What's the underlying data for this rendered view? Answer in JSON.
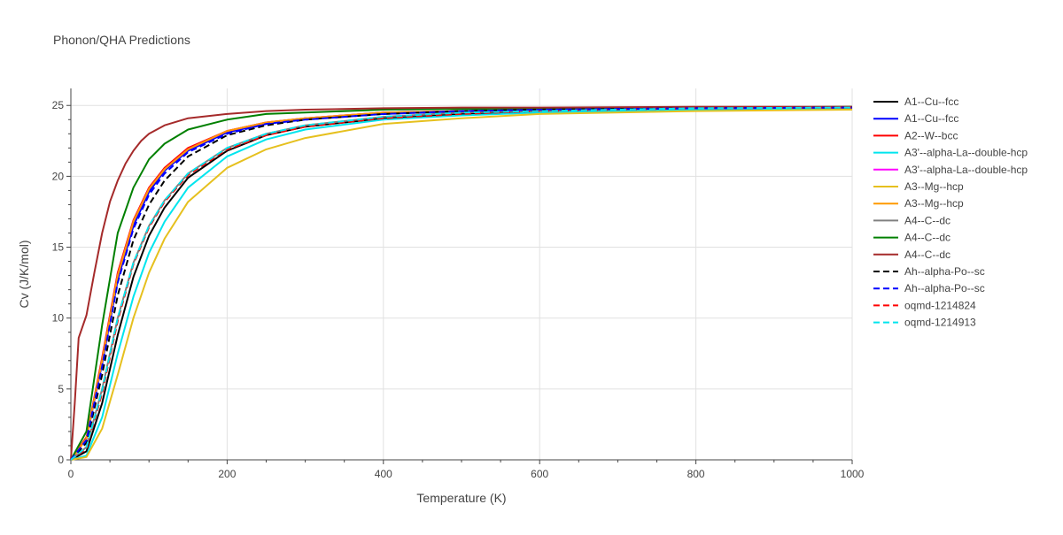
{
  "chart_data": {
    "type": "line",
    "title": "Phonon/QHA Predictions",
    "xlabel": "Temperature (K)",
    "ylabel": "Cv (J/K/mol)",
    "xlim": [
      0,
      1000
    ],
    "ylim": [
      0,
      26.2
    ],
    "xticks": [
      0,
      200,
      400,
      600,
      800,
      1000
    ],
    "yticks": [
      0,
      5,
      10,
      15,
      20,
      25
    ],
    "grid": true,
    "legend_position": "right",
    "series": [
      {
        "name": "A1--Cu--fcc",
        "color": "#000000",
        "dash": "solid",
        "x": [
          0,
          20,
          40,
          60,
          80,
          100,
          120,
          150,
          200,
          250,
          300,
          400,
          500,
          600,
          800,
          1000
        ],
        "y": [
          0,
          0.6,
          4.0,
          8.8,
          12.9,
          15.8,
          17.8,
          19.9,
          21.8,
          22.9,
          23.5,
          24.1,
          24.4,
          24.6,
          24.8,
          24.85
        ]
      },
      {
        "name": "A1--Cu--fcc",
        "color": "#0000ff",
        "dash": "solid",
        "x": [
          0,
          20,
          40,
          60,
          80,
          100,
          120,
          150,
          200,
          250,
          300,
          400,
          500,
          600,
          800,
          1000
        ],
        "y": [
          0,
          1.5,
          6.8,
          12.7,
          16.5,
          18.9,
          20.4,
          21.8,
          23.1,
          23.7,
          24.1,
          24.4,
          24.6,
          24.7,
          24.8,
          24.85
        ]
      },
      {
        "name": "A2--W--bcc",
        "color": "#ff0000",
        "dash": "solid",
        "x": [
          0,
          20,
          40,
          60,
          80,
          100,
          120,
          150,
          200,
          250,
          300,
          400,
          500,
          600,
          800,
          1000
        ],
        "y": [
          0,
          1.6,
          7.2,
          13.2,
          16.9,
          19.2,
          20.6,
          22.0,
          23.2,
          23.8,
          24.1,
          24.5,
          24.6,
          24.7,
          24.8,
          24.85
        ]
      },
      {
        "name": "A3'--alpha-La--double-hcp",
        "color": "#00e5ee",
        "dash": "solid",
        "x": [
          0,
          20,
          40,
          60,
          80,
          100,
          120,
          150,
          200,
          250,
          300,
          400,
          500,
          600,
          800,
          1000
        ],
        "y": [
          0,
          0.3,
          3.0,
          7.5,
          11.5,
          14.6,
          16.8,
          19.2,
          21.4,
          22.6,
          23.3,
          24.0,
          24.3,
          24.5,
          24.7,
          24.8
        ]
      },
      {
        "name": "A3'--alpha-La--double-hcp",
        "color": "#ff00ff",
        "dash": "solid",
        "x": [
          0,
          20,
          40,
          60,
          80,
          100,
          120,
          150,
          200,
          250,
          300,
          400,
          500,
          600,
          800,
          1000
        ],
        "y": [
          0,
          1.5,
          7.0,
          13.0,
          16.8,
          19.1,
          20.5,
          21.9,
          23.2,
          23.8,
          24.1,
          24.5,
          24.6,
          24.7,
          24.8,
          24.85
        ]
      },
      {
        "name": "A3--Mg--hcp",
        "color": "#e6c01e",
        "dash": "solid",
        "x": [
          0,
          20,
          40,
          60,
          80,
          100,
          120,
          150,
          200,
          250,
          300,
          400,
          500,
          600,
          800,
          1000
        ],
        "y": [
          0,
          0.2,
          2.2,
          6.0,
          10.0,
          13.2,
          15.6,
          18.2,
          20.6,
          21.9,
          22.7,
          23.7,
          24.1,
          24.4,
          24.6,
          24.7
        ]
      },
      {
        "name": "A3--Mg--hcp",
        "color": "#ff9900",
        "dash": "solid",
        "x": [
          0,
          20,
          40,
          60,
          80,
          100,
          120,
          150,
          200,
          250,
          300,
          400,
          500,
          600,
          800,
          1000
        ],
        "y": [
          0,
          1.5,
          7.0,
          13.0,
          16.8,
          19.1,
          20.5,
          21.9,
          23.2,
          23.8,
          24.1,
          24.5,
          24.6,
          24.7,
          24.8,
          24.85
        ]
      },
      {
        "name": "A4--C--dc",
        "color": "#808080",
        "dash": "solid",
        "x": [
          0,
          20,
          40,
          60,
          80,
          100,
          120,
          150,
          200,
          250,
          300,
          400,
          500,
          600,
          800,
          1000
        ],
        "y": [
          0,
          0.9,
          5.0,
          10.0,
          13.9,
          16.5,
          18.3,
          20.2,
          22.0,
          23.0,
          23.6,
          24.2,
          24.5,
          24.6,
          24.8,
          24.85
        ]
      },
      {
        "name": "A4--C--dc",
        "color": "#008000",
        "dash": "solid",
        "x": [
          0,
          20,
          40,
          60,
          80,
          100,
          120,
          150,
          200,
          250,
          300,
          400,
          500,
          600,
          800,
          1000
        ],
        "y": [
          0,
          2.0,
          9.5,
          16.0,
          19.2,
          21.2,
          22.3,
          23.3,
          24.0,
          24.4,
          24.5,
          24.7,
          24.75,
          24.8,
          24.85,
          24.9
        ]
      },
      {
        "name": "A4--C--dc",
        "color": "#a52a2a",
        "dash": "solid",
        "x": [
          0,
          5,
          10,
          20,
          30,
          40,
          50,
          60,
          70,
          80,
          90,
          100,
          120,
          150,
          200,
          250,
          300,
          400,
          500,
          600,
          800,
          1000
        ],
        "y": [
          0,
          4.0,
          8.6,
          10.2,
          13.2,
          16.0,
          18.2,
          19.7,
          20.9,
          21.8,
          22.5,
          23.0,
          23.6,
          24.1,
          24.4,
          24.6,
          24.7,
          24.8,
          24.85,
          24.85,
          24.9,
          24.9
        ]
      },
      {
        "name": "Ah--alpha-Po--sc",
        "color": "#000000",
        "dash": "dash",
        "x": [
          0,
          20,
          40,
          60,
          80,
          100,
          120,
          150,
          200,
          250,
          300,
          400,
          500,
          600,
          800,
          1000
        ],
        "y": [
          0,
          1.2,
          6.0,
          11.6,
          15.5,
          18.0,
          19.7,
          21.4,
          22.9,
          23.6,
          24.0,
          24.4,
          24.6,
          24.7,
          24.8,
          24.85
        ]
      },
      {
        "name": "Ah--alpha-Po--sc",
        "color": "#0000ff",
        "dash": "dash",
        "x": [
          0,
          20,
          40,
          60,
          80,
          100,
          120,
          150,
          200,
          250,
          300,
          400,
          500,
          600,
          800,
          1000
        ],
        "y": [
          0,
          1.4,
          6.6,
          12.5,
          16.3,
          18.7,
          20.2,
          21.7,
          23.0,
          23.7,
          24.0,
          24.4,
          24.6,
          24.7,
          24.8,
          24.85
        ]
      },
      {
        "name": "oqmd-1214824",
        "color": "#ff0000",
        "dash": "dash",
        "x": [
          0,
          20,
          40,
          60,
          80,
          100,
          120,
          150,
          200,
          250,
          300,
          400,
          500,
          600,
          800,
          1000
        ],
        "y": [
          0,
          0.8,
          4.7,
          9.8,
          13.8,
          16.4,
          18.2,
          20.1,
          21.9,
          22.9,
          23.5,
          24.1,
          24.4,
          24.6,
          24.8,
          24.85
        ]
      },
      {
        "name": "oqmd-1214913",
        "color": "#00e5ee",
        "dash": "dash",
        "x": [
          0,
          20,
          40,
          60,
          80,
          100,
          120,
          150,
          200,
          250,
          300,
          400,
          500,
          600,
          800,
          1000
        ],
        "y": [
          0,
          0.9,
          4.9,
          10.0,
          13.9,
          16.5,
          18.3,
          20.2,
          22.0,
          23.0,
          23.6,
          24.2,
          24.5,
          24.6,
          24.8,
          24.85
        ]
      }
    ]
  }
}
